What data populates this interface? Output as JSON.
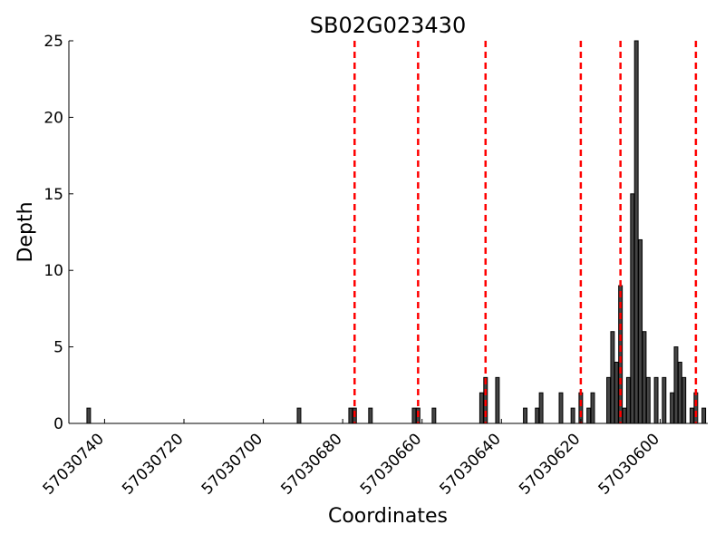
{
  "chart_data": {
    "type": "bar",
    "title": "SB02G023430",
    "xlabel": "Coordinates",
    "ylabel": "Depth",
    "x_reversed": true,
    "xlim": [
      57030749,
      57030588
    ],
    "ylim": [
      0,
      25
    ],
    "x_ticks": [
      57030740,
      57030720,
      57030700,
      57030680,
      57030660,
      57030640,
      57030620,
      57030600
    ],
    "y_ticks": [
      0,
      5,
      10,
      15,
      20,
      25
    ],
    "bar_color": "#444444",
    "line_color": "#ff0000",
    "vertical_lines": [
      57030677,
      57030661,
      57030644,
      57030620,
      57030610,
      57030591
    ],
    "bars": [
      {
        "x": 57030744,
        "y": 1
      },
      {
        "x": 57030691,
        "y": 1
      },
      {
        "x": 57030678,
        "y": 1
      },
      {
        "x": 57030677,
        "y": 1
      },
      {
        "x": 57030673,
        "y": 1
      },
      {
        "x": 57030662,
        "y": 1
      },
      {
        "x": 57030661,
        "y": 1
      },
      {
        "x": 57030657,
        "y": 1
      },
      {
        "x": 57030645,
        "y": 2
      },
      {
        "x": 57030644,
        "y": 3
      },
      {
        "x": 57030641,
        "y": 3
      },
      {
        "x": 57030634,
        "y": 1
      },
      {
        "x": 57030631,
        "y": 1
      },
      {
        "x": 57030630,
        "y": 2
      },
      {
        "x": 57030625,
        "y": 2
      },
      {
        "x": 57030622,
        "y": 1
      },
      {
        "x": 57030620,
        "y": 2
      },
      {
        "x": 57030618,
        "y": 1
      },
      {
        "x": 57030617,
        "y": 2
      },
      {
        "x": 57030613,
        "y": 3
      },
      {
        "x": 57030612,
        "y": 6
      },
      {
        "x": 57030611,
        "y": 4
      },
      {
        "x": 57030610,
        "y": 9
      },
      {
        "x": 57030609,
        "y": 1
      },
      {
        "x": 57030608,
        "y": 3
      },
      {
        "x": 57030607,
        "y": 15
      },
      {
        "x": 57030606,
        "y": 25
      },
      {
        "x": 57030605,
        "y": 12
      },
      {
        "x": 57030604,
        "y": 6
      },
      {
        "x": 57030603,
        "y": 3
      },
      {
        "x": 57030601,
        "y": 3
      },
      {
        "x": 57030599,
        "y": 3
      },
      {
        "x": 57030597,
        "y": 2
      },
      {
        "x": 57030596,
        "y": 5
      },
      {
        "x": 57030595,
        "y": 4
      },
      {
        "x": 57030594,
        "y": 3
      },
      {
        "x": 57030592,
        "y": 1
      },
      {
        "x": 57030591,
        "y": 2
      },
      {
        "x": 57030589,
        "y": 1
      }
    ]
  }
}
